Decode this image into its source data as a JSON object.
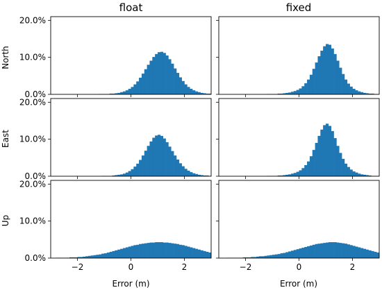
{
  "columns": [
    "float",
    "fixed"
  ],
  "rows": [
    "North",
    "East",
    "Up"
  ],
  "xlabel": "Error (m)",
  "colors": {
    "bar": "#1f77b4",
    "axis": "#000000"
  },
  "chart_data": {
    "type": "bar",
    "layout": "3x2 grid of histograms, shared axes",
    "xlim": [
      -3,
      3
    ],
    "ylim": [
      0,
      21
    ],
    "xticks": [
      -2,
      0,
      2
    ],
    "xtick_labels": [
      "−2",
      "0",
      "2"
    ],
    "yticks": [
      0,
      10,
      20
    ],
    "ytick_labels": [
      "0.0%",
      "10.0%",
      "20.0%"
    ],
    "bin_width": 0.1,
    "bin_start": -3,
    "grid": false,
    "panels": [
      {
        "row": "North",
        "column": "float",
        "values": [
          0,
          0,
          0,
          0,
          0,
          0,
          0,
          0,
          0,
          0,
          0,
          0,
          0,
          0,
          0,
          0,
          0,
          0,
          0.1,
          0.1,
          0.1,
          0.1,
          0.2,
          0.2,
          0.3,
          0.4,
          0.6,
          0.8,
          1.1,
          1.5,
          2.0,
          2.7,
          3.5,
          4.5,
          5.6,
          6.8,
          8.0,
          9.1,
          10.1,
          10.9,
          11.4,
          11.5,
          11.2,
          10.5,
          9.5,
          8.3,
          7.0,
          5.8,
          4.6,
          3.6,
          2.7,
          2.0,
          1.5,
          1.1,
          0.8,
          0.6,
          0.4,
          0.3,
          0.2,
          0.2,
          0.1,
          0.1,
          0.1,
          0,
          0,
          0,
          0,
          0,
          0,
          0,
          0,
          0,
          0,
          0,
          0,
          0,
          0,
          0,
          0,
          0,
          0,
          0,
          0,
          0,
          0,
          0,
          0,
          0,
          0,
          0,
          0,
          0,
          0,
          0,
          0,
          0,
          0,
          0,
          0,
          0,
          0,
          0,
          0,
          0,
          0,
          0,
          0,
          0,
          0,
          0,
          0,
          0,
          0,
          0,
          0,
          0,
          0,
          0,
          0,
          0,
          0,
          0,
          0,
          0,
          0,
          0,
          0,
          0,
          0,
          0,
          0,
          0,
          0,
          0,
          0,
          0,
          0,
          0,
          0,
          0,
          0,
          0,
          0,
          0,
          0,
          0,
          0,
          0,
          0,
          0,
          0,
          0,
          0,
          0,
          0,
          0,
          0,
          0,
          0,
          0,
          0,
          0,
          0,
          0,
          0,
          0,
          0,
          0,
          0,
          0,
          0,
          0,
          0,
          0,
          0,
          0,
          0,
          0,
          0,
          0,
          0,
          0,
          0,
          0,
          0,
          0,
          0,
          0,
          0,
          0,
          0,
          0,
          0,
          0,
          0,
          0,
          0,
          0,
          0
        ]
      },
      {
        "row": "North",
        "column": "fixed",
        "values": [
          0,
          0,
          0,
          0,
          0,
          0,
          0,
          0,
          0,
          0,
          0,
          0,
          0,
          0,
          0,
          0,
          0,
          0,
          0.1,
          0.1,
          0.1,
          0.1,
          0.2,
          0.2,
          0.3,
          0.4,
          0.5,
          0.7,
          0.9,
          1.2,
          1.6,
          2.2,
          3.0,
          4.0,
          5.3,
          6.9,
          8.6,
          10.3,
          11.8,
          13.0,
          13.6,
          13.4,
          12.4,
          10.9,
          9.1,
          7.2,
          5.5,
          4.0,
          2.9,
          2.1,
          1.5,
          1.1,
          0.8,
          0.6,
          0.4,
          0.3,
          0.2,
          0.2,
          0.1,
          0.1,
          0.1,
          0.1,
          0,
          0,
          0,
          0,
          0,
          0,
          0,
          0,
          0,
          0,
          0,
          0,
          0,
          0,
          0,
          0,
          0,
          0,
          0,
          0,
          0,
          0,
          0,
          0,
          0,
          0,
          0,
          0,
          0,
          0,
          0,
          0,
          0,
          0,
          0,
          0,
          0,
          0,
          0,
          0,
          0,
          0,
          0,
          0,
          0,
          0,
          0,
          0,
          0,
          0,
          0,
          0,
          0,
          0,
          0,
          0,
          0,
          0,
          0,
          0,
          0,
          0,
          0,
          0,
          0,
          0,
          0,
          0,
          0,
          0,
          0,
          0,
          0,
          0,
          0,
          0,
          0,
          0,
          0,
          0,
          0,
          0,
          0,
          0,
          0,
          0,
          0,
          0,
          0,
          0,
          0,
          0,
          0,
          0,
          0,
          0,
          0,
          0,
          0,
          0,
          0,
          0,
          0,
          0,
          0,
          0,
          0,
          0,
          0,
          0,
          0,
          0,
          0,
          0,
          0,
          0,
          0,
          0,
          0,
          0,
          0,
          0,
          0,
          0,
          0,
          0,
          0,
          0,
          0,
          0,
          0,
          0,
          0,
          0,
          0,
          0,
          0,
          0,
          0,
          0,
          0
        ]
      },
      {
        "row": "East",
        "column": "float",
        "values": [
          0,
          0,
          0,
          0,
          0,
          0,
          0,
          0,
          0,
          0,
          0,
          0,
          0,
          0,
          0,
          0,
          0,
          0,
          0,
          0.1,
          0.1,
          0.1,
          0.1,
          0.2,
          0.3,
          0.4,
          0.5,
          0.7,
          1.0,
          1.4,
          1.9,
          2.6,
          3.4,
          4.4,
          5.6,
          6.9,
          8.2,
          9.4,
          10.4,
          11.0,
          11.2,
          10.9,
          10.2,
          9.2,
          8.0,
          6.8,
          5.6,
          4.5,
          3.5,
          2.7,
          2.0,
          1.5,
          1.1,
          0.8,
          0.6,
          0.4,
          0.3,
          0.2,
          0.2,
          0.1,
          0.1,
          0.1,
          0,
          0,
          0,
          0,
          0,
          0,
          0,
          0,
          0,
          0,
          0,
          0,
          0,
          0,
          0,
          0,
          0,
          0,
          0,
          0,
          0,
          0,
          0,
          0,
          0,
          0,
          0,
          0,
          0,
          0,
          0,
          0,
          0,
          0,
          0,
          0,
          0,
          0,
          0,
          0,
          0,
          0,
          0,
          0,
          0,
          0,
          0,
          0,
          0,
          0,
          0,
          0,
          0,
          0,
          0,
          0,
          0,
          0,
          0,
          0,
          0,
          0,
          0,
          0,
          0,
          0,
          0,
          0,
          0,
          0,
          0,
          0,
          0,
          0,
          0,
          0,
          0,
          0,
          0,
          0,
          0,
          0,
          0,
          0,
          0,
          0,
          0,
          0,
          0,
          0,
          0,
          0,
          0,
          0,
          0,
          0,
          0,
          0,
          0,
          0,
          0,
          0,
          0,
          0,
          0,
          0,
          0,
          0,
          0,
          0,
          0,
          0,
          0,
          0,
          0,
          0,
          0,
          0,
          0,
          0,
          0,
          0,
          0,
          0,
          0,
          0,
          0,
          0,
          0,
          0,
          0,
          0,
          0,
          0,
          0,
          0,
          0,
          0,
          0,
          0,
          0,
          0
        ]
      },
      {
        "row": "East",
        "column": "fixed",
        "values": [
          0,
          0,
          0,
          0,
          0,
          0,
          0,
          0,
          0,
          0,
          0,
          0,
          0,
          0,
          0,
          0,
          0,
          0,
          0.1,
          0.1,
          0.1,
          0.1,
          0.2,
          0.2,
          0.3,
          0.4,
          0.5,
          0.7,
          0.9,
          1.2,
          1.6,
          2.2,
          3.0,
          4.0,
          5.4,
          7.1,
          9.0,
          10.9,
          12.6,
          13.8,
          14.2,
          13.6,
          12.2,
          10.3,
          8.2,
          6.3,
          4.7,
          3.4,
          2.5,
          1.8,
          1.3,
          1.0,
          0.7,
          0.5,
          0.4,
          0.3,
          0.2,
          0.1,
          0.1,
          0.1,
          0.1,
          0,
          0,
          0,
          0,
          0,
          0,
          0,
          0,
          0,
          0,
          0,
          0,
          0,
          0,
          0,
          0,
          0,
          0,
          0,
          0,
          0,
          0,
          0,
          0,
          0,
          0,
          0,
          0,
          0,
          0,
          0,
          0,
          0,
          0,
          0,
          0,
          0,
          0,
          0,
          0,
          0,
          0,
          0,
          0,
          0,
          0,
          0,
          0,
          0,
          0,
          0,
          0,
          0,
          0,
          0,
          0,
          0,
          0,
          0,
          0,
          0,
          0,
          0,
          0,
          0,
          0,
          0,
          0,
          0,
          0,
          0,
          0,
          0,
          0,
          0,
          0,
          0,
          0,
          0,
          0,
          0,
          0,
          0,
          0,
          0,
          0,
          0,
          0,
          0,
          0,
          0,
          0,
          0,
          0,
          0,
          0,
          0,
          0,
          0,
          0,
          0,
          0,
          0,
          0,
          0,
          0,
          0,
          0,
          0,
          0,
          0,
          0,
          0,
          0,
          0,
          0,
          0,
          0,
          0,
          0,
          0,
          0,
          0,
          0,
          0,
          0,
          0,
          0,
          0,
          0,
          0,
          0,
          0,
          0,
          0,
          0,
          0,
          0,
          0,
          0,
          0,
          0,
          0
        ]
      },
      {
        "row": "Up",
        "column": "float",
        "values": [
          0,
          0,
          0.1,
          0.1,
          0.1,
          0.1,
          0.1,
          0.2,
          0.2,
          0.2,
          0.3,
          0.3,
          0.4,
          0.5,
          0.6,
          0.7,
          0.8,
          0.9,
          1.0,
          1.2,
          1.3,
          1.5,
          1.7,
          1.9,
          2.1,
          2.3,
          2.5,
          2.7,
          2.9,
          3.1,
          3.3,
          3.5,
          3.6,
          3.8,
          3.9,
          4.0,
          4.1,
          4.2,
          4.2,
          4.3,
          4.3,
          4.3,
          4.2,
          4.2,
          4.1,
          4.0,
          3.9,
          3.8,
          3.6,
          3.5,
          3.3,
          3.1,
          2.9,
          2.7,
          2.5,
          2.3,
          2.1,
          1.9,
          1.7,
          1.5,
          1.3,
          1.2,
          1.0,
          0.9,
          0.8,
          0.7,
          0.6,
          0.5,
          0.4,
          0.3,
          0.3,
          0.2,
          0.2,
          0.2,
          0.1,
          0.1,
          0.1,
          0.1,
          0.1,
          0.1,
          0,
          0,
          0,
          0,
          0,
          0,
          0,
          0,
          0,
          0,
          0,
          0,
          0,
          0,
          0,
          0,
          0,
          0,
          0,
          0,
          0,
          0,
          0,
          0,
          0,
          0,
          0,
          0,
          0,
          0,
          0,
          0,
          0,
          0,
          0,
          0,
          0,
          0,
          0,
          0,
          0,
          0,
          0,
          0,
          0,
          0,
          0,
          0,
          0,
          0,
          0,
          0,
          0,
          0,
          0,
          0,
          0,
          0,
          0,
          0,
          0,
          0,
          0,
          0,
          0,
          0,
          0,
          0,
          0,
          0,
          0,
          0,
          0,
          0,
          0,
          0,
          0,
          0,
          0,
          0,
          0,
          0,
          0,
          0,
          0,
          0,
          0,
          0,
          0,
          0,
          0,
          0,
          0,
          0,
          0,
          0,
          0,
          0,
          0,
          0,
          0,
          0,
          0,
          0,
          0,
          0,
          0,
          0,
          0,
          0,
          0,
          0,
          0,
          0,
          0,
          0,
          0
        ]
      },
      {
        "row": "Up",
        "column": "fixed",
        "values": [
          0,
          0,
          0,
          0.1,
          0.1,
          0.1,
          0.1,
          0.1,
          0.1,
          0.2,
          0.2,
          0.2,
          0.3,
          0.3,
          0.4,
          0.5,
          0.5,
          0.6,
          0.7,
          0.8,
          0.9,
          1.0,
          1.1,
          1.3,
          1.4,
          1.6,
          1.8,
          2.0,
          2.2,
          2.4,
          2.6,
          2.8,
          3.0,
          3.2,
          3.4,
          3.6,
          3.8,
          3.9,
          4.0,
          4.1,
          4.2,
          4.3,
          4.3,
          4.3,
          4.2,
          4.1,
          4.0,
          3.9,
          3.7,
          3.5,
          3.3,
          3.1,
          2.9,
          2.7,
          2.5,
          2.3,
          2.1,
          1.9,
          1.7,
          1.5,
          1.3,
          1.1,
          1.0,
          0.9,
          0.8,
          0.7,
          0.6,
          0.5,
          0.4,
          0.3,
          0.3,
          0.2,
          0.2,
          0.2,
          0.1,
          0.1,
          0.1,
          0.1,
          0.1,
          0,
          0,
          0,
          0,
          0,
          0,
          0,
          0,
          0,
          0,
          0,
          0,
          0,
          0,
          0,
          0,
          0,
          0,
          0,
          0,
          0,
          0,
          0,
          0,
          0,
          0,
          0,
          0,
          0,
          0,
          0,
          0,
          0,
          0,
          0,
          0,
          0,
          0,
          0,
          0,
          0,
          0,
          0,
          0,
          0,
          0,
          0,
          0,
          0,
          0,
          0,
          0,
          0,
          0,
          0,
          0,
          0,
          0,
          0,
          0,
          0,
          0,
          0,
          0,
          0,
          0,
          0,
          0,
          0,
          0,
          0,
          0,
          0,
          0,
          0,
          0,
          0,
          0,
          0,
          0,
          0,
          0,
          0,
          0,
          0,
          0,
          0,
          0,
          0,
          0,
          0,
          0,
          0,
          0,
          0,
          0,
          0,
          0,
          0,
          0,
          0,
          0,
          0,
          0,
          0,
          0,
          0,
          0,
          0,
          0,
          0,
          0,
          0,
          0,
          0,
          0,
          0
        ]
      }
    ]
  }
}
